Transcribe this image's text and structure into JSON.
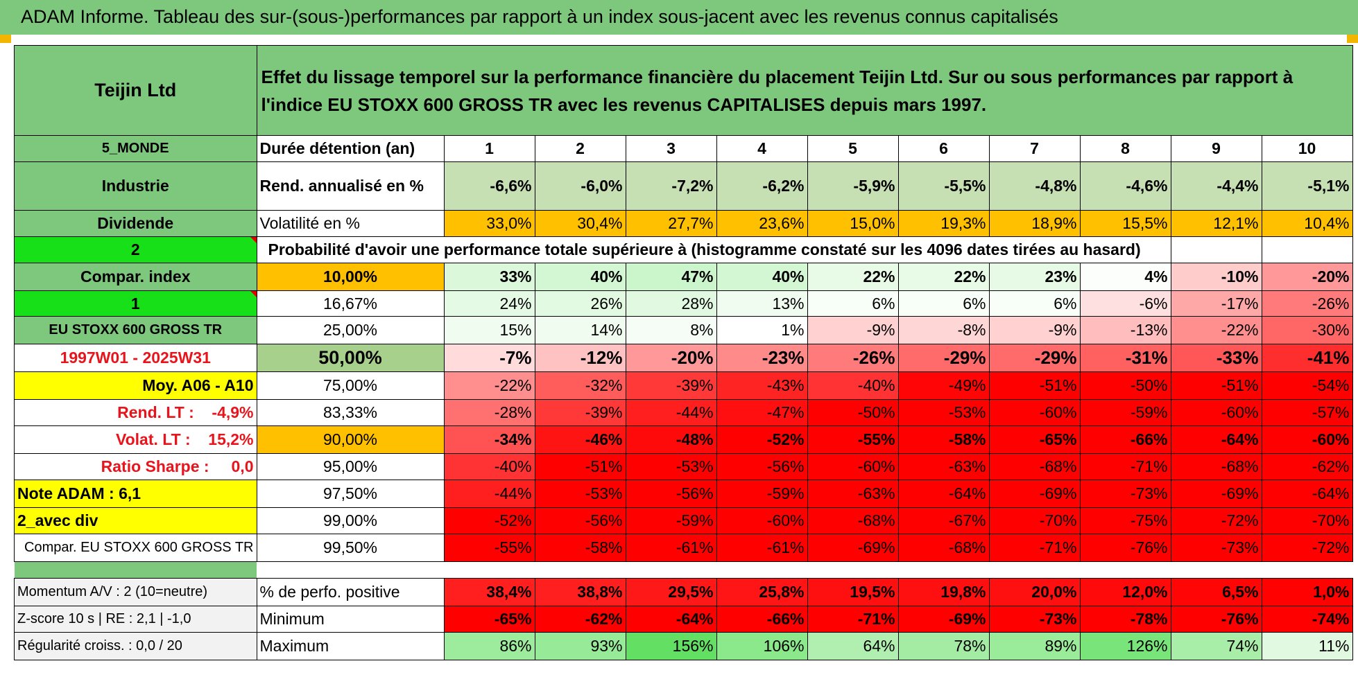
{
  "title": "ADAM Informe. Tableau des sur-(sous-)performances par rapport à un index sous-jacent avec les revenus connus capitalisés",
  "header": {
    "company": "Teijin Ltd",
    "description": "Effet du lissage temporel sur la performance financière du placement Teijin Ltd. Sur ou sous performances par rapport à l'indice EU STOXX 600 GROSS TR avec les revenus CAPITALISES depuis mars 1997."
  },
  "side": {
    "region": "5_MONDE",
    "sector": "Industrie",
    "type": "Dividende",
    "value1": "2",
    "compar_index": "Compar. index",
    "value2": "1",
    "index_name": "EU STOXX 600 GROSS TR",
    "period": "1997W01 - 2025W31",
    "moy": "Moy. A06 - A10",
    "rend_lt": "Rend. LT :    -4,9%",
    "volat_lt": "Volat. LT :    15,2%",
    "sharpe": "Ratio Sharpe :     0,0",
    "note": "Note ADAM : 6,1",
    "avec_div": "2_avec div",
    "compar_full": "Compar. EU STOXX 600 GROSS TR"
  },
  "labels": {
    "duration": "Durée détention (an)",
    "rend": "Rend. annualisé en %",
    "vol": "Volatilité en %",
    "prob": "Probabilité d'avoir une performance totale supérieure à (histogramme constaté sur les 4096 dates tirées au hasard)"
  },
  "years": [
    "1",
    "2",
    "3",
    "4",
    "5",
    "6",
    "7",
    "8",
    "9",
    "10"
  ],
  "rend": [
    "-6,6%",
    "-6,0%",
    "-7,2%",
    "-6,2%",
    "-5,9%",
    "-5,5%",
    "-4,8%",
    "-4,6%",
    "-4,4%",
    "-5,1%"
  ],
  "vol": [
    "33,0%",
    "30,4%",
    "27,7%",
    "23,6%",
    "15,0%",
    "19,3%",
    "18,9%",
    "15,5%",
    "12,1%",
    "10,4%"
  ],
  "prob_rows": [
    {
      "pct": "10,00%",
      "values": [
        "33%",
        "40%",
        "47%",
        "40%",
        "22%",
        "22%",
        "23%",
        "4%",
        "-10%",
        "-20%"
      ]
    },
    {
      "pct": "16,67%",
      "values": [
        "24%",
        "26%",
        "28%",
        "13%",
        "6%",
        "6%",
        "6%",
        "-6%",
        "-17%",
        "-26%"
      ]
    },
    {
      "pct": "25,00%",
      "values": [
        "15%",
        "14%",
        "8%",
        "1%",
        "-9%",
        "-8%",
        "-9%",
        "-13%",
        "-22%",
        "-30%"
      ]
    },
    {
      "pct": "50,00%",
      "values": [
        "-7%",
        "-12%",
        "-20%",
        "-23%",
        "-26%",
        "-29%",
        "-29%",
        "-31%",
        "-33%",
        "-41%"
      ]
    },
    {
      "pct": "75,00%",
      "values": [
        "-22%",
        "-32%",
        "-39%",
        "-43%",
        "-40%",
        "-49%",
        "-51%",
        "-50%",
        "-51%",
        "-54%"
      ]
    },
    {
      "pct": "83,33%",
      "values": [
        "-28%",
        "-39%",
        "-44%",
        "-47%",
        "-50%",
        "-53%",
        "-60%",
        "-59%",
        "-60%",
        "-57%"
      ]
    },
    {
      "pct": "90,00%",
      "values": [
        "-34%",
        "-46%",
        "-48%",
        "-52%",
        "-55%",
        "-58%",
        "-65%",
        "-66%",
        "-64%",
        "-60%"
      ]
    },
    {
      "pct": "95,00%",
      "values": [
        "-40%",
        "-51%",
        "-53%",
        "-56%",
        "-60%",
        "-63%",
        "-68%",
        "-71%",
        "-68%",
        "-62%"
      ]
    },
    {
      "pct": "97,50%",
      "values": [
        "-44%",
        "-53%",
        "-56%",
        "-59%",
        "-63%",
        "-64%",
        "-69%",
        "-73%",
        "-69%",
        "-64%"
      ]
    },
    {
      "pct": "99,00%",
      "values": [
        "-52%",
        "-56%",
        "-59%",
        "-60%",
        "-68%",
        "-67%",
        "-70%",
        "-75%",
        "-72%",
        "-70%"
      ]
    },
    {
      "pct": "99,50%",
      "values": [
        "-55%",
        "-58%",
        "-61%",
        "-61%",
        "-69%",
        "-68%",
        "-71%",
        "-76%",
        "-73%",
        "-72%"
      ]
    }
  ],
  "bottom": [
    {
      "left": "Momentum A/V : 2 (10=neutre)",
      "label": "% de perfo. positive",
      "values": [
        "38,4%",
        "38,8%",
        "29,5%",
        "25,8%",
        "19,5%",
        "19,8%",
        "20,0%",
        "12,0%",
        "6,5%",
        "1,0%"
      ]
    },
    {
      "left": "Z-score 10 s | RE : 2,1 | -1,0",
      "label": "Minimum",
      "values": [
        "-65%",
        "-62%",
        "-64%",
        "-66%",
        "-71%",
        "-69%",
        "-73%",
        "-78%",
        "-76%",
        "-74%"
      ]
    },
    {
      "left": "Régularité croiss. : 0,0 / 20",
      "label": "Maximum",
      "values": [
        "86%",
        "93%",
        "156%",
        "106%",
        "64%",
        "78%",
        "89%",
        "126%",
        "74%",
        "11%"
      ]
    }
  ],
  "colors": {
    "header_green": "#7ec87e",
    "highlight_yellow": "#ffff00",
    "bright_green": "#18e018",
    "orange": "#ffc000",
    "negative_red": "#ff0000",
    "positive_green": "#63e063"
  }
}
